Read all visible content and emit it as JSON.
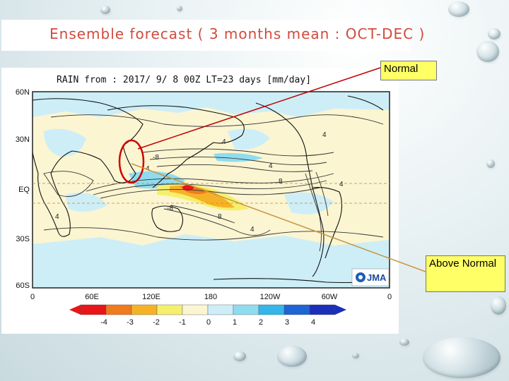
{
  "slide": {
    "title": "Ensemble forecast ( 3 months mean : OCT-DEC )"
  },
  "map": {
    "header": "RAIN  from : 2017/ 9/ 8 00Z LT=23 days  [mm/day]",
    "lat_labels": [
      "60N",
      "30N",
      "EQ",
      "30S",
      "60S"
    ],
    "lon_labels": [
      "0",
      "60E",
      "120E",
      "180",
      "120W",
      "60W",
      "0"
    ],
    "contour_labels": [
      "4",
      "4",
      "4",
      "-8",
      "4",
      "8",
      "4",
      "-8",
      "8",
      "4",
      "4"
    ],
    "logo_text": "JMA",
    "colorbar": {
      "labels": [
        "-4",
        "-3",
        "-2",
        "-1",
        "0",
        "1",
        "2",
        "3",
        "4"
      ],
      "colors": [
        "#e8161a",
        "#f07a1e",
        "#f6b227",
        "#f5ef6e",
        "#fbf5d2",
        "#cdeef7",
        "#8fdcf0",
        "#34b6e8",
        "#1e64d4",
        "#1b2fb8"
      ]
    }
  },
  "callouts": {
    "normal": "Normal",
    "above_normal": "Above Normal"
  },
  "colors": {
    "title": "#d24a3c",
    "callout_fill": "#ffff66",
    "arrow_red": "#c00000",
    "arrow_tan": "#c8963e",
    "circle": "#d00000"
  }
}
